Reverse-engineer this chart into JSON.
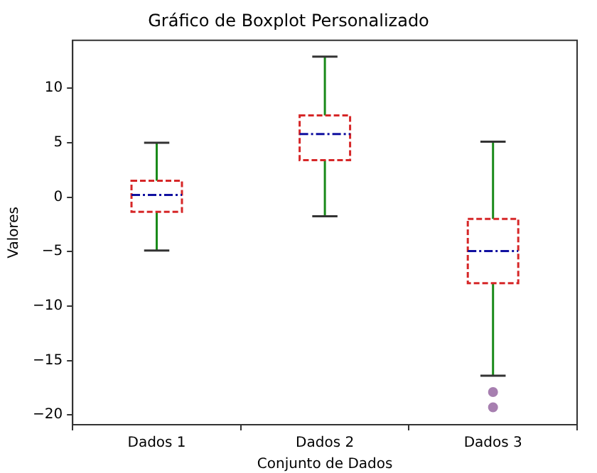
{
  "chart_data": {
    "type": "box",
    "title": "Gráfico de Boxplot Personalizado",
    "xlabel": "Conjunto de Dados",
    "ylabel": "Valores",
    "categories": [
      "Dados 1",
      "Dados 2",
      "Dados 3"
    ],
    "series": [
      {
        "color": "#d62728",
        "boxes": [
          {
            "low": -4.9,
            "q1": -1.35,
            "median": 0.2,
            "q3": 1.5,
            "high": 5.0
          },
          {
            "low": -1.75,
            "q1": 3.4,
            "median": 5.8,
            "q3": 7.5,
            "high": 12.9
          },
          {
            "low": -16.4,
            "q1": -7.9,
            "median": -4.95,
            "q3": -2.0,
            "high": 5.1,
            "outliers": [
              -17.9,
              -19.3
            ]
          }
        ]
      }
    ],
    "ylim": [
      -20.9,
      14.4
    ],
    "yticks": [
      -20,
      -15,
      -10,
      -5,
      0,
      5,
      10
    ],
    "grid": false,
    "legend": false
  }
}
